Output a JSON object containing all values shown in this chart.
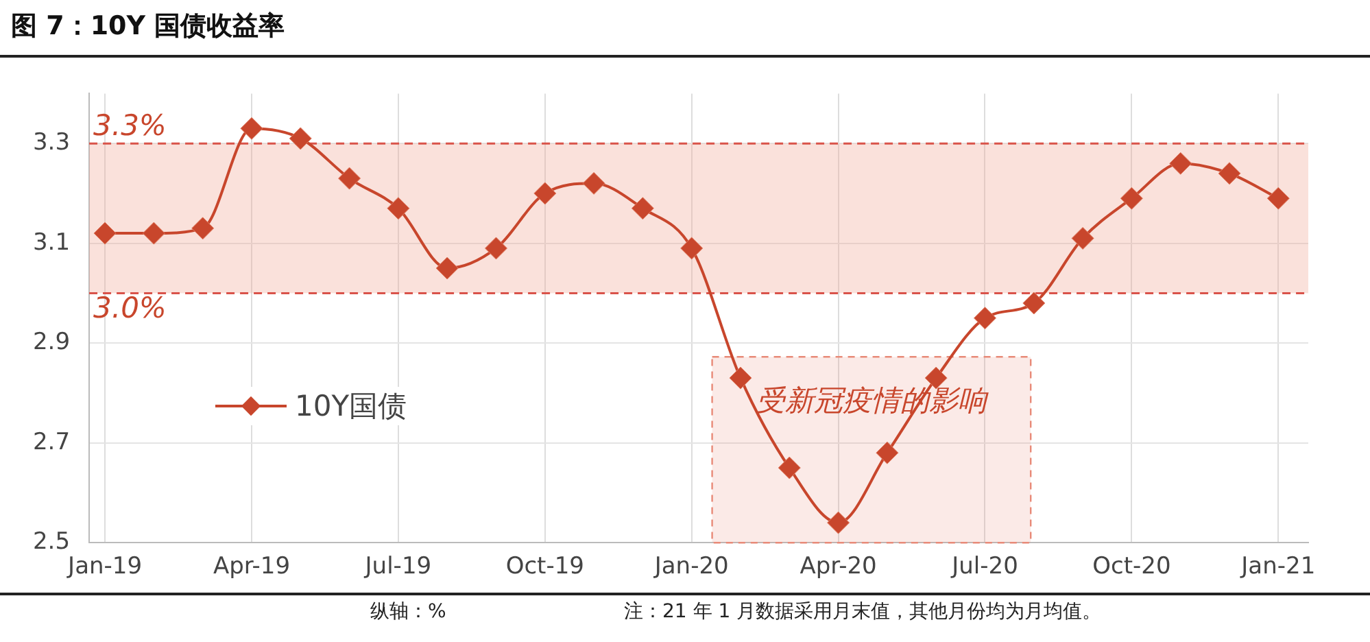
{
  "chart_data": {
    "type": "line",
    "title": "图 7：10Y 国债收益率",
    "x": [
      "2019-01",
      "2019-02",
      "2019-03",
      "2019-04",
      "2019-05",
      "2019-06",
      "2019-07",
      "2019-08",
      "2019-09",
      "2019-10",
      "2019-11",
      "2019-12",
      "2020-01",
      "2020-02",
      "2020-03",
      "2020-04",
      "2020-05",
      "2020-06",
      "2020-07",
      "2020-08",
      "2020-09",
      "2020-10",
      "2020-11",
      "2020-12",
      "2021-01"
    ],
    "series": [
      {
        "name": "10Y国债",
        "color": "#c8462c",
        "values": [
          3.12,
          3.12,
          3.13,
          3.33,
          3.31,
          3.23,
          3.17,
          3.05,
          3.09,
          3.2,
          3.22,
          3.17,
          3.09,
          2.83,
          2.65,
          2.54,
          2.68,
          2.83,
          2.95,
          2.98,
          3.11,
          3.19,
          3.26,
          3.24,
          3.19
        ]
      }
    ],
    "xlim": [
      "2018-12-22",
      "2021-01-20"
    ],
    "xticks": [
      {
        "value": "2019-01",
        "label": "Jan-19"
      },
      {
        "value": "2019-04",
        "label": "Apr-19"
      },
      {
        "value": "2019-07",
        "label": "Jul-19"
      },
      {
        "value": "2019-10",
        "label": "Oct-19"
      },
      {
        "value": "2020-01",
        "label": "Jan-20"
      },
      {
        "value": "2020-04",
        "label": "Apr-20"
      },
      {
        "value": "2020-07",
        "label": "Jul-20"
      },
      {
        "value": "2020-10",
        "label": "Oct-20"
      },
      {
        "value": "2021-01",
        "label": "Jan-21"
      }
    ],
    "ylim": [
      2.5,
      3.4
    ],
    "yticks": [
      2.5,
      2.7,
      2.9,
      3.1,
      3.3
    ],
    "ref_lines": [
      {
        "axis": "y",
        "value": 3.3,
        "label": "3.3%",
        "color": "#d9534a",
        "line_style": "dashed"
      },
      {
        "axis": "y",
        "value": 3.0,
        "label": "3.0%",
        "color": "#d9534a",
        "line_style": "dashed"
      }
    ],
    "bands": [
      {
        "axis": "y",
        "from": 3.0,
        "to": 3.3,
        "label": null,
        "color": "#f0a898"
      },
      {
        "axis": "x",
        "from": "2020-01-14",
        "to": "2020-07-30",
        "label": "受新冠疫情的影响",
        "color": "#e88a78"
      }
    ],
    "annotations": [
      "纵轴：%",
      "注：21 年 1 月数据采用月末值，其他月份均为月均值。"
    ],
    "grid": true,
    "legend": "center left",
    "marker": "diamond",
    "line_style": "solid"
  }
}
